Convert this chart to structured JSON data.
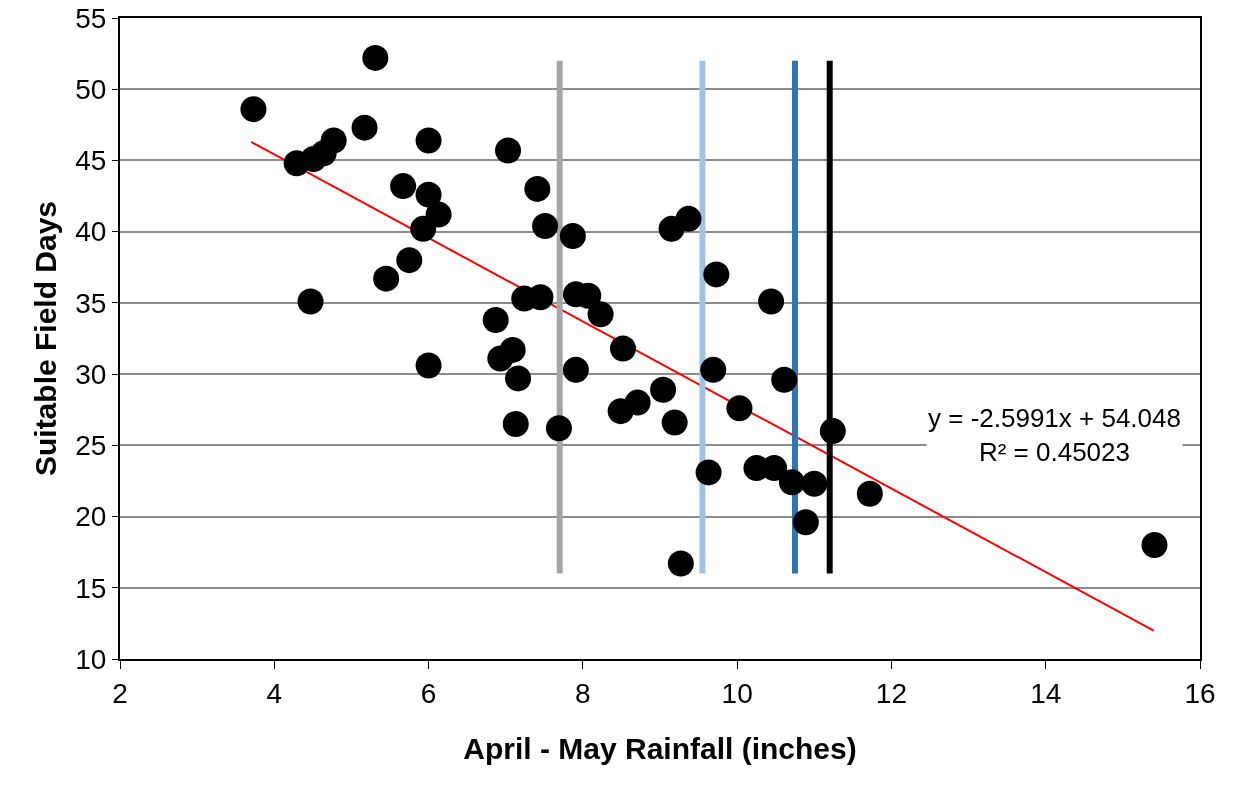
{
  "chart_data": {
    "type": "scatter",
    "xlabel": "April - May Rainfall (inches)",
    "ylabel": "Suitable Field Days",
    "xlim": [
      2,
      16
    ],
    "xticks": [
      2,
      4,
      6,
      8,
      10,
      12,
      14,
      16
    ],
    "ylim": [
      10,
      55
    ],
    "yticks": [
      10,
      15,
      20,
      25,
      30,
      35,
      40,
      45,
      50,
      55
    ],
    "grid": "y",
    "annotations": [
      "y = -2.5991x + 54.048\nR² = 0.45023"
    ],
    "series": [
      {
        "color": "#000000",
        "marker": "circle",
        "x": [
          3.73,
          5.31,
          4.29,
          4.51,
          4.64,
          4.77,
          5.17,
          6.0,
          4.47,
          5.45,
          5.67,
          5.75,
          6.0,
          5.93,
          6.13,
          6.0,
          7.03,
          7.41,
          7.51,
          7.87,
          6.87,
          7.24,
          7.45,
          6.93,
          7.09,
          7.16,
          7.13,
          7.69,
          7.91,
          7.91,
          8.07,
          8.23,
          8.52,
          8.49,
          8.71,
          9.04,
          9.19,
          9.27,
          9.15,
          9.37,
          9.73,
          9.69,
          9.63,
          10.03,
          10.25,
          10.48,
          10.44,
          10.61,
          10.71,
          11.0,
          10.89,
          11.24,
          11.72,
          15.41
        ],
        "values": [
          48.6,
          52.2,
          44.8,
          45.1,
          45.5,
          46.4,
          47.3,
          46.4,
          35.1,
          36.7,
          43.2,
          38.0,
          42.6,
          40.2,
          41.2,
          30.6,
          45.7,
          43.0,
          40.4,
          39.7,
          33.8,
          35.3,
          35.4,
          31.1,
          31.7,
          29.7,
          26.5,
          26.2,
          30.3,
          35.6,
          35.5,
          34.2,
          31.8,
          27.4,
          28.0,
          28.9,
          26.6,
          16.7,
          40.2,
          40.9,
          37.0,
          30.3,
          23.1,
          27.6,
          23.4,
          23.4,
          35.1,
          29.6,
          22.4,
          22.3,
          19.6,
          26.0,
          21.6,
          18.0
        ]
      },
      {
        "type": "line",
        "color": "#ff0000",
        "marker": "none",
        "line_style": "solid",
        "x": [
          3.7,
          15.4
        ],
        "values": [
          46.3,
          12.0
        ]
      },
      {
        "type": "line",
        "color": "#a6a6a6",
        "marker": "none",
        "line_style": "solid",
        "x": [
          7.7,
          7.7
        ],
        "values": [
          16,
          52
        ]
      },
      {
        "type": "line",
        "color": "#9dc3e6",
        "marker": "none",
        "line_style": "solid",
        "x": [
          9.55,
          9.55
        ],
        "values": [
          16,
          52
        ]
      },
      {
        "type": "line",
        "color": "#2e75b6",
        "marker": "none",
        "line_style": "solid",
        "x": [
          10.75,
          10.75
        ],
        "values": [
          16,
          52
        ]
      },
      {
        "type": "line",
        "color": "#000000",
        "marker": "none",
        "line_style": "solid",
        "x": [
          11.2,
          11.2
        ],
        "values": [
          16,
          52
        ]
      }
    ]
  }
}
